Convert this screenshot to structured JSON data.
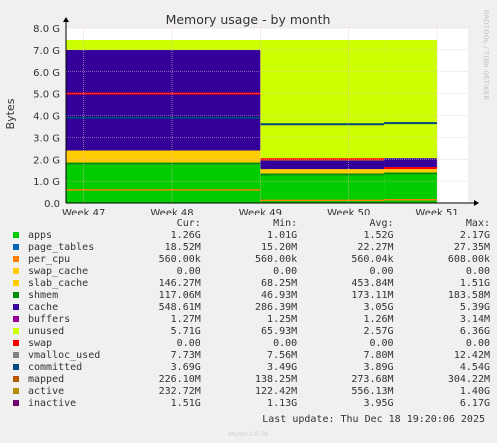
{
  "chart_data": {
    "type": "area",
    "title": "Memory usage - by month",
    "ylabel": "Bytes",
    "xlabel": "",
    "ylim": [
      0,
      8.0
    ],
    "y_unit": "G",
    "y_ticks": [
      "0.0",
      "1.0 G",
      "2.0 G",
      "3.0 G",
      "4.0 G",
      "5.0 G",
      "6.0 G",
      "7.0 G",
      "8.0 G"
    ],
    "x_ticks": [
      "Week 47",
      "Week 48",
      "Week 49",
      "Week 50",
      "Week 51"
    ],
    "grid": true,
    "side_label": "RRDTOOL / TOBI OETIKER",
    "series": [
      {
        "name": "apps",
        "color": "#00cc00",
        "cur": "1.26G",
        "min": "1.01G",
        "avg": "1.52G",
        "max": "2.17G"
      },
      {
        "name": "page_tables",
        "color": "#0066b3",
        "cur": "18.52M",
        "min": "15.20M",
        "avg": "22.27M",
        "max": "27.35M"
      },
      {
        "name": "per_cpu",
        "color": "#ff8000",
        "cur": "560.00k",
        "min": "560.00k",
        "avg": "560.04k",
        "max": "608.00k"
      },
      {
        "name": "swap_cache",
        "color": "#ffcc00",
        "cur": "0.00",
        "min": "0.00",
        "avg": "0.00",
        "max": "0.00"
      },
      {
        "name": "slab_cache",
        "color": "#ffcc00",
        "cur": "146.27M",
        "min": "68.25M",
        "avg": "453.84M",
        "max": "1.51G"
      },
      {
        "name": "shmem",
        "color": "#008f00",
        "cur": "117.06M",
        "min": "46.93M",
        "avg": "173.11M",
        "max": "183.58M"
      },
      {
        "name": "cache",
        "color": "#330099",
        "cur": "548.61M",
        "min": "286.39M",
        "avg": "3.05G",
        "max": "5.39G"
      },
      {
        "name": "buffers",
        "color": "#990099",
        "cur": "1.27M",
        "min": "1.25M",
        "avg": "1.26M",
        "max": "3.14M"
      },
      {
        "name": "unused",
        "color": "#ccff00",
        "cur": "5.71G",
        "min": "65.93M",
        "avg": "2.57G",
        "max": "6.36G"
      },
      {
        "name": "swap",
        "color": "#ff0000",
        "cur": "0.00",
        "min": "0.00",
        "avg": "0.00",
        "max": "0.00"
      },
      {
        "name": "vmalloc_used",
        "color": "#808080",
        "cur": "7.73M",
        "min": "7.56M",
        "avg": "7.80M",
        "max": "12.42M"
      },
      {
        "name": "committed",
        "color": "#00487d",
        "cur": "3.69G",
        "min": "3.49G",
        "avg": "3.89G",
        "max": "4.54G"
      },
      {
        "name": "mapped",
        "color": "#b35a00",
        "cur": "226.10M",
        "min": "138.25M",
        "avg": "273.68M",
        "max": "304.22M"
      },
      {
        "name": "active",
        "color": "#b38f00",
        "cur": "232.72M",
        "min": "122.42M",
        "avg": "556.13M",
        "max": "1.40G"
      },
      {
        "name": "inactive",
        "color": "#6b006b",
        "cur": "1.51G",
        "min": "1.13G",
        "avg": "3.95G",
        "max": "6.17G"
      }
    ],
    "segments": [
      {
        "start_week": 46.8,
        "end_week": 49.1,
        "apps": 1.75,
        "shmem": 0.1,
        "slab": 0.55,
        "cache": 4.6,
        "unused_top": 7.45,
        "committed": 3.9,
        "inactive": 5.0,
        "active": 0.6
      },
      {
        "start_week": 49.0,
        "end_week": 50.4,
        "apps": 1.25,
        "shmem": 0.1,
        "slab": 0.2,
        "cache": 0.4,
        "unused_top": 7.45,
        "committed": 3.6,
        "inactive": 2.0,
        "active": 0.12
      },
      {
        "start_week": 50.4,
        "end_week": 51.0,
        "apps": 1.3,
        "shmem": 0.1,
        "slab": 0.15,
        "cache": 0.5,
        "unused_top": 7.45,
        "committed": 3.65,
        "inactive": 1.6,
        "active": 0.15
      }
    ]
  },
  "legend_headers": {
    "cur": "Cur:",
    "min": "Min:",
    "avg": "Avg:",
    "max": "Max:"
  },
  "last_update": "Last update: Thu Dec 18 19:20:06 2025",
  "munin_version": "Munin 2.0.76"
}
